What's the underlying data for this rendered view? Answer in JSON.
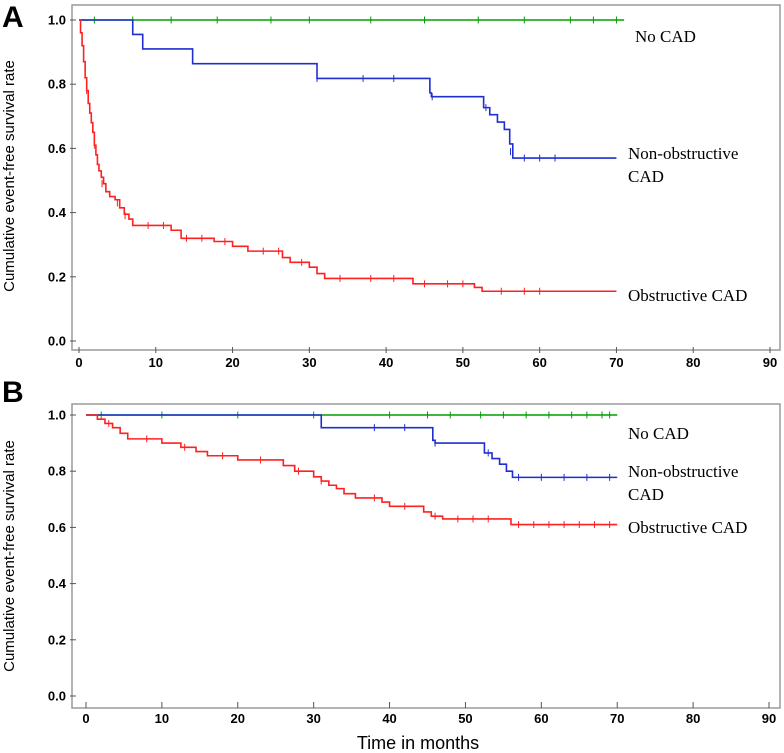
{
  "chart_data": [
    {
      "type": "line",
      "panel": "A",
      "xlabel": "",
      "ylabel": "Cumulative event-free survival rate",
      "xlim": [
        0,
        90
      ],
      "ylim": [
        0,
        1
      ],
      "xticks": [
        "0",
        "10",
        "20",
        "30",
        "40",
        "50",
        "60",
        "70",
        "80",
        "90"
      ],
      "yticks": [
        "0.0",
        "0.2",
        "0.4",
        "0.6",
        "0.8",
        "1.0"
      ],
      "series": [
        {
          "name": "No CAD",
          "label_lines": [
            "No CAD"
          ],
          "color": "#00a000",
          "steps": [
            [
              0,
              1.0
            ],
            [
              71,
              1.0
            ]
          ],
          "censors": [
            [
              2,
              1.0
            ],
            [
              7,
              1.0
            ],
            [
              12,
              1.0
            ],
            [
              18,
              1.0
            ],
            [
              25,
              1.0
            ],
            [
              30,
              1.0
            ],
            [
              38,
              1.0
            ],
            [
              45,
              1.0
            ],
            [
              52,
              1.0
            ],
            [
              58,
              1.0
            ],
            [
              64,
              1.0
            ],
            [
              67,
              1.0
            ],
            [
              70,
              1.0
            ]
          ]
        },
        {
          "name": "Non-obstructive CAD",
          "label_lines": [
            "Non-obstructive",
            "CAD"
          ],
          "color": "#1f2fcf",
          "steps": [
            [
              0,
              1.0
            ],
            [
              7,
              0.955
            ],
            [
              8.3,
              0.91
            ],
            [
              14.8,
              0.864
            ],
            [
              31,
              0.818
            ],
            [
              45.7,
              0.773
            ],
            [
              45.9,
              0.761
            ],
            [
              52.7,
              0.727
            ],
            [
              53.5,
              0.705
            ],
            [
              54.5,
              0.682
            ],
            [
              55.4,
              0.659
            ],
            [
              56.1,
              0.614
            ],
            [
              56.5,
              0.57
            ],
            [
              70,
              0.57
            ]
          ],
          "censors": [
            [
              7,
              0.99
            ],
            [
              31,
              0.818
            ],
            [
              37,
              0.818
            ],
            [
              41,
              0.818
            ],
            [
              46,
              0.761
            ],
            [
              53,
              0.727
            ],
            [
              56.2,
              0.59
            ],
            [
              58,
              0.57
            ],
            [
              60,
              0.57
            ],
            [
              62,
              0.57
            ]
          ]
        },
        {
          "name": "Obstructive CAD",
          "label_lines": [
            "Obstructive CAD"
          ],
          "color": "#ff2020",
          "steps": [
            [
              0,
              1.0
            ],
            [
              0.2,
              0.96
            ],
            [
              0.4,
              0.92
            ],
            [
              0.6,
              0.87
            ],
            [
              0.8,
              0.82
            ],
            [
              1.0,
              0.78
            ],
            [
              1.2,
              0.74
            ],
            [
              1.4,
              0.71
            ],
            [
              1.6,
              0.68
            ],
            [
              1.8,
              0.65
            ],
            [
              2.0,
              0.61
            ],
            [
              2.2,
              0.58
            ],
            [
              2.4,
              0.55
            ],
            [
              2.6,
              0.53
            ],
            [
              2.9,
              0.51
            ],
            [
              3.2,
              0.49
            ],
            [
              3.5,
              0.465
            ],
            [
              4.0,
              0.45
            ],
            [
              4.7,
              0.44
            ],
            [
              5.3,
              0.415
            ],
            [
              5.9,
              0.395
            ],
            [
              6.5,
              0.38
            ],
            [
              7.0,
              0.36
            ],
            [
              12.0,
              0.345
            ],
            [
              13.3,
              0.32
            ],
            [
              17.6,
              0.31
            ],
            [
              20.0,
              0.295
            ],
            [
              22.0,
              0.28
            ],
            [
              26.5,
              0.26
            ],
            [
              27.5,
              0.245
            ],
            [
              30.0,
              0.23
            ],
            [
              31.0,
              0.21
            ],
            [
              32.0,
              0.195
            ],
            [
              43.5,
              0.178
            ],
            [
              51.5,
              0.167
            ],
            [
              52.5,
              0.155
            ],
            [
              70,
              0.155
            ]
          ],
          "censors": [
            [
              1,
              0.78
            ],
            [
              2,
              0.61
            ],
            [
              3,
              0.49
            ],
            [
              5,
              0.43
            ],
            [
              6,
              0.39
            ],
            [
              9,
              0.36
            ],
            [
              11,
              0.36
            ],
            [
              14,
              0.32
            ],
            [
              16,
              0.32
            ],
            [
              19,
              0.31
            ],
            [
              24,
              0.28
            ],
            [
              26,
              0.28
            ],
            [
              29,
              0.245
            ],
            [
              34,
              0.195
            ],
            [
              38,
              0.195
            ],
            [
              41,
              0.195
            ],
            [
              45,
              0.178
            ],
            [
              48,
              0.178
            ],
            [
              50,
              0.178
            ],
            [
              55,
              0.155
            ],
            [
              58,
              0.155
            ],
            [
              60,
              0.155
            ]
          ]
        }
      ]
    },
    {
      "type": "line",
      "panel": "B",
      "xlabel": "Time in months",
      "ylabel": "Cumulative event-free survival rate",
      "xlim": [
        0,
        90
      ],
      "ylim": [
        0,
        1
      ],
      "xticks": [
        "0",
        "10",
        "20",
        "30",
        "40",
        "50",
        "60",
        "70",
        "80",
        "90"
      ],
      "yticks": [
        "0.0",
        "0.2",
        "0.4",
        "0.6",
        "0.8",
        "1.0"
      ],
      "series": [
        {
          "name": "No CAD",
          "label_lines": [
            "No CAD"
          ],
          "color": "#00a000",
          "steps": [
            [
              0,
              1.0
            ],
            [
              70,
              1.0
            ]
          ],
          "censors": [
            [
              2,
              1.0
            ],
            [
              10,
              1.0
            ],
            [
              20,
              1.0
            ],
            [
              30,
              1.0
            ],
            [
              40,
              1.0
            ],
            [
              45,
              1.0
            ],
            [
              48,
              1.0
            ],
            [
              52,
              1.0
            ],
            [
              55,
              1.0
            ],
            [
              58,
              1.0
            ],
            [
              61,
              1.0
            ],
            [
              64,
              1.0
            ],
            [
              66,
              1.0
            ],
            [
              68,
              1.0
            ],
            [
              69,
              1.0
            ]
          ]
        },
        {
          "name": "Non-obstructive CAD",
          "label_lines": [
            "Non-obstructive",
            "CAD"
          ],
          "color": "#1f2fcf",
          "steps": [
            [
              0,
              1.0
            ],
            [
              31,
              0.955
            ],
            [
              45.7,
              0.91
            ],
            [
              46,
              0.9
            ],
            [
              52.5,
              0.865
            ],
            [
              53.5,
              0.845
            ],
            [
              54.5,
              0.825
            ],
            [
              55.4,
              0.8
            ],
            [
              56.2,
              0.778
            ],
            [
              70,
              0.778
            ]
          ],
          "censors": [
            [
              31,
              0.99
            ],
            [
              38,
              0.955
            ],
            [
              42,
              0.955
            ],
            [
              46,
              0.9
            ],
            [
              53,
              0.865
            ],
            [
              57,
              0.778
            ],
            [
              60,
              0.778
            ],
            [
              63,
              0.778
            ],
            [
              66,
              0.778
            ],
            [
              69,
              0.778
            ]
          ]
        },
        {
          "name": "Obstructive CAD",
          "label_lines": [
            "Obstructive CAD"
          ],
          "color": "#ff2020",
          "steps": [
            [
              0,
              1.0
            ],
            [
              1.5,
              0.985
            ],
            [
              2.5,
              0.97
            ],
            [
              3.5,
              0.955
            ],
            [
              4.5,
              0.935
            ],
            [
              5.5,
              0.915
            ],
            [
              10,
              0.9
            ],
            [
              12.5,
              0.885
            ],
            [
              14.5,
              0.87
            ],
            [
              16,
              0.855
            ],
            [
              20,
              0.84
            ],
            [
              26,
              0.82
            ],
            [
              27.5,
              0.8
            ],
            [
              30,
              0.78
            ],
            [
              31,
              0.765
            ],
            [
              32,
              0.75
            ],
            [
              33,
              0.738
            ],
            [
              34,
              0.72
            ],
            [
              35.5,
              0.705
            ],
            [
              39,
              0.69
            ],
            [
              40,
              0.675
            ],
            [
              44.5,
              0.655
            ],
            [
              45.5,
              0.64
            ],
            [
              47,
              0.63
            ],
            [
              56,
              0.61
            ],
            [
              70,
              0.61
            ]
          ],
          "censors": [
            [
              3,
              0.97
            ],
            [
              8,
              0.915
            ],
            [
              13,
              0.885
            ],
            [
              18,
              0.855
            ],
            [
              23,
              0.84
            ],
            [
              28,
              0.8
            ],
            [
              31,
              0.765
            ],
            [
              38,
              0.705
            ],
            [
              42,
              0.675
            ],
            [
              46,
              0.64
            ],
            [
              49,
              0.63
            ],
            [
              51,
              0.63
            ],
            [
              53,
              0.63
            ],
            [
              57,
              0.61
            ],
            [
              59,
              0.61
            ],
            [
              61,
              0.61
            ],
            [
              63,
              0.61
            ],
            [
              65,
              0.61
            ],
            [
              67,
              0.61
            ],
            [
              69,
              0.61
            ]
          ]
        }
      ]
    }
  ]
}
